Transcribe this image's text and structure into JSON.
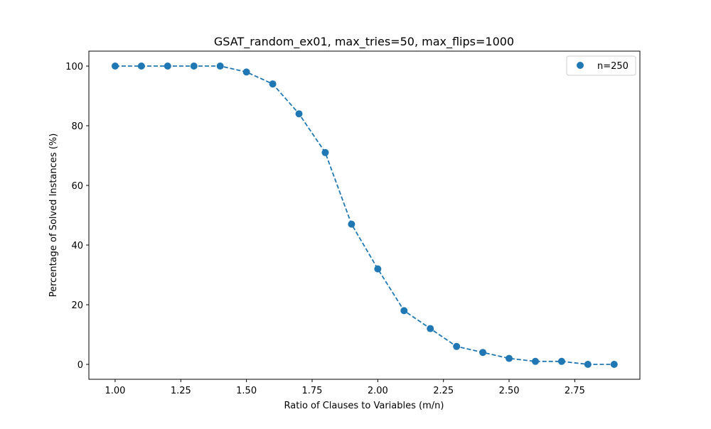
{
  "chart_data": {
    "type": "line",
    "title": "GSAT_random_ex01, max_tries=50, max_flips=1000",
    "xlabel": "Ratio of Clauses to Variables (m/n)",
    "ylabel": "Percentage of Solved Instances (%)",
    "xlim": [
      0.9,
      2.998
    ],
    "ylim": [
      -5,
      105
    ],
    "xticks": [
      1.0,
      1.25,
      1.5,
      1.75,
      2.0,
      2.25,
      2.5,
      2.75
    ],
    "xtick_labels": [
      "1.00",
      "1.25",
      "1.50",
      "1.75",
      "2.00",
      "2.25",
      "2.50",
      "2.75"
    ],
    "yticks": [
      0,
      20,
      40,
      60,
      80,
      100
    ],
    "ytick_labels": [
      "0",
      "20",
      "40",
      "60",
      "80",
      "100"
    ],
    "grid": false,
    "legend_position": "top-right",
    "series": [
      {
        "name": "n=250",
        "color": "#1f77b4",
        "line_style": "dashed",
        "marker": "circle",
        "x": [
          1.0,
          1.1,
          1.2,
          1.3,
          1.4,
          1.5,
          1.6,
          1.7,
          1.8,
          1.9,
          2.0,
          2.1,
          2.2,
          2.3,
          2.4,
          2.5,
          2.6,
          2.7,
          2.8,
          2.9
        ],
        "y": [
          100,
          100,
          100,
          100,
          100,
          98,
          94,
          84,
          71,
          47,
          32,
          18,
          12,
          6,
          4,
          2,
          1,
          1,
          0,
          0
        ]
      }
    ]
  }
}
